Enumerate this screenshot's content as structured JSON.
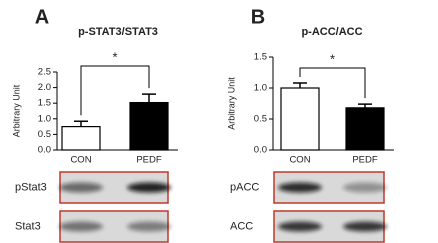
{
  "chart_data": [
    {
      "type": "bar",
      "panel": "A",
      "title": "p-STAT3/STAT3",
      "y_label": "Arbitrary Unit",
      "categories": [
        "CON",
        "PEDF"
      ],
      "values": [
        0.75,
        1.52
      ],
      "errors": [
        0.17,
        0.27
      ],
      "colors": [
        "#ffffff",
        "#000000"
      ],
      "significance": "*",
      "ylim": [
        0,
        2.5
      ],
      "yticks": [
        {
          "value": 0,
          "label": "0.0"
        },
        0.5,
        {
          "value": 1,
          "label": "1.0"
        },
        1.5,
        {
          "value": 2,
          "label": "2.0"
        },
        2.5
      ],
      "blot_labels": [
        "pStat3",
        "Stat3"
      ]
    },
    {
      "type": "bar",
      "panel": "B",
      "title": "p-ACC/ACC",
      "y_label": "Arbitrary Unit",
      "categories": [
        "CON",
        "PEDF"
      ],
      "values": [
        1.0,
        0.68
      ],
      "errors": [
        0.08,
        0.06
      ],
      "colors": [
        "#ffffff",
        "#000000"
      ],
      "significance": "*",
      "ylim": [
        0,
        1.5
      ],
      "yticks": [
        {
          "value": 0,
          "label": "0.0"
        },
        0.5,
        {
          "value": 1,
          "label": "1.0"
        },
        1.5
      ],
      "blot_labels": [
        "pACC",
        "ACC"
      ]
    }
  ]
}
